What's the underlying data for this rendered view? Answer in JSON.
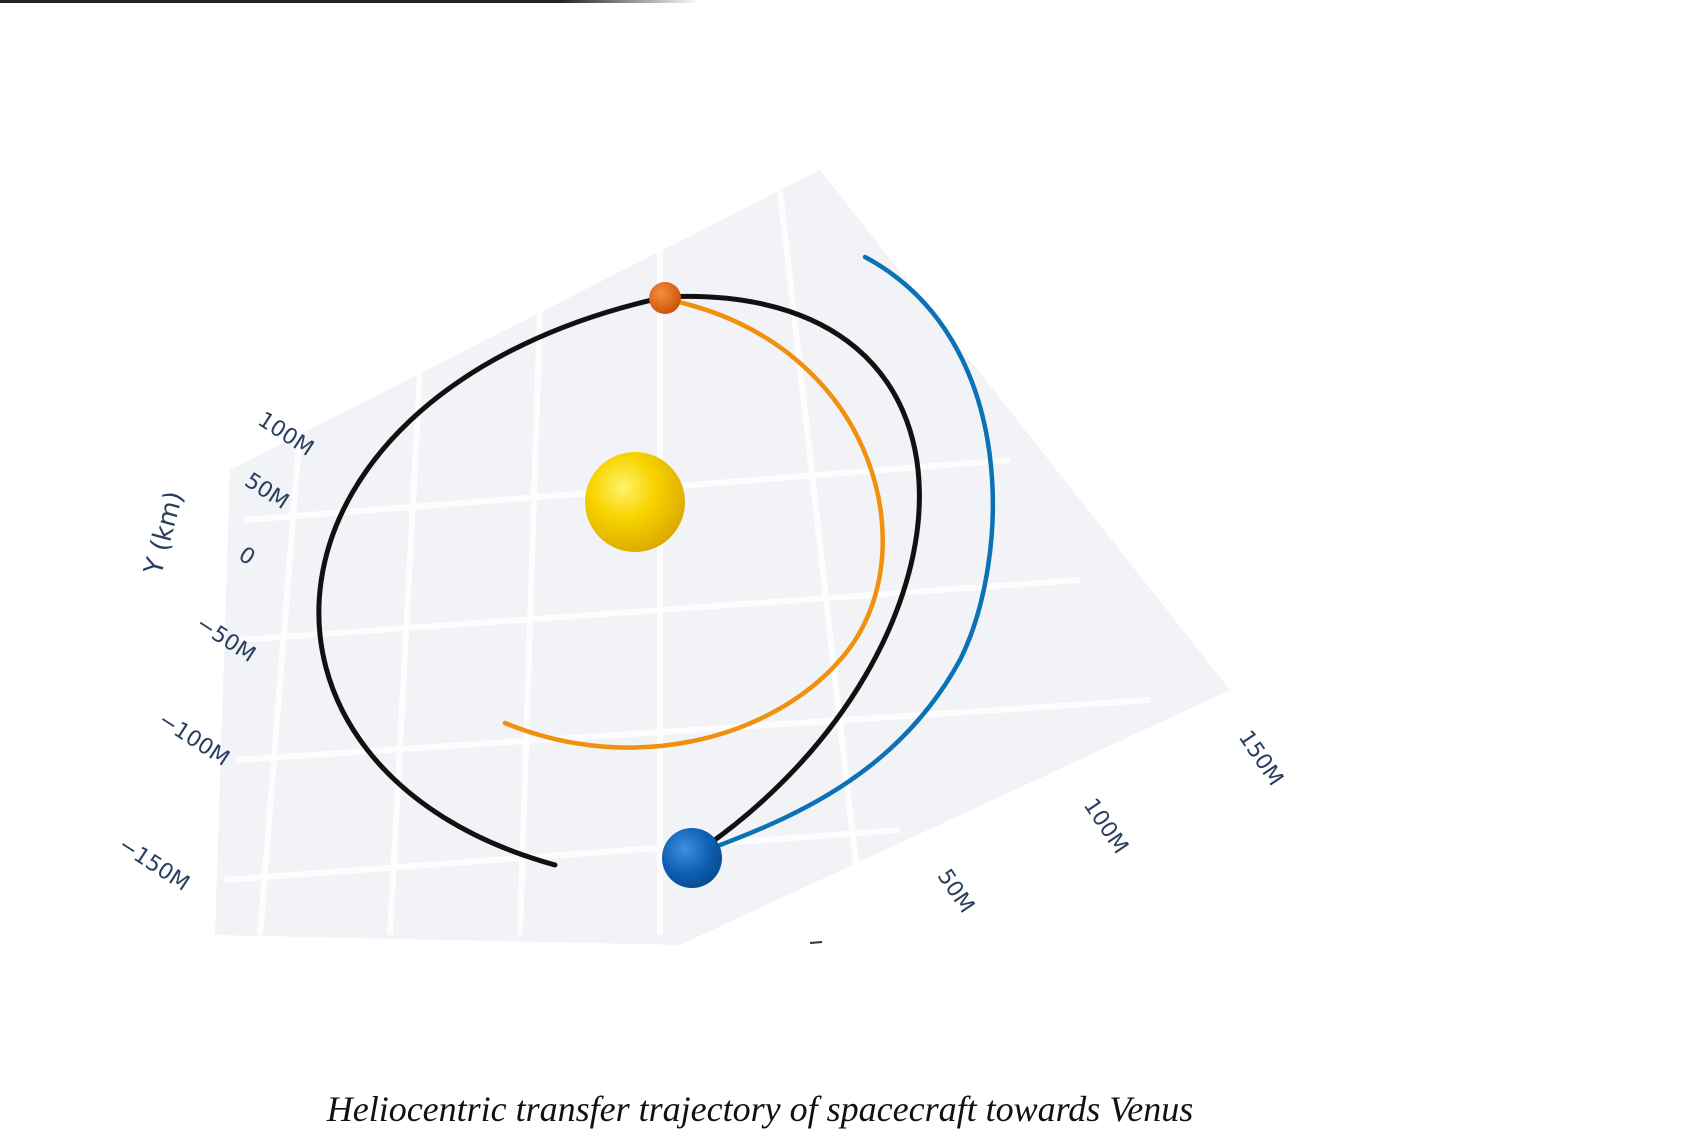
{
  "caption": "Heliocentric transfer trajectory of spacecraft towards Venus",
  "chart_data": {
    "type": "scatter",
    "projection": "3d",
    "yaxis": {
      "title": "Y (km)",
      "tick_labels": [
        "100M",
        "50M",
        "0",
        "−50M",
        "−100M",
        "−150M"
      ],
      "tick_values": [
        100000000,
        50000000,
        0,
        -50000000,
        -100000000,
        -150000000
      ]
    },
    "xaxis": {
      "title": "",
      "tick_labels": [
        "50M",
        "100M",
        "150M"
      ],
      "tick_values": [
        50000000,
        100000000,
        150000000
      ]
    },
    "grid": true,
    "legend": "none",
    "series": [
      {
        "kind": "orbit",
        "color": "#111111"
      },
      {
        "kind": "orbit",
        "color": "#f0900c"
      },
      {
        "kind": "trajectory",
        "color": "#0b72b5"
      }
    ],
    "bodies": [
      {
        "kind": "sun",
        "color": "#f3c600",
        "marker": "large sphere"
      },
      {
        "kind": "planet",
        "color": "#e0620c",
        "marker": "small sphere"
      },
      {
        "kind": "planet",
        "color": "#0d5fb4",
        "marker": "sphere"
      }
    ]
  },
  "colors": {
    "axis_text": "#2a3f5f",
    "grid_plane": "#eef1f6",
    "grid_line": "#ffffff"
  }
}
